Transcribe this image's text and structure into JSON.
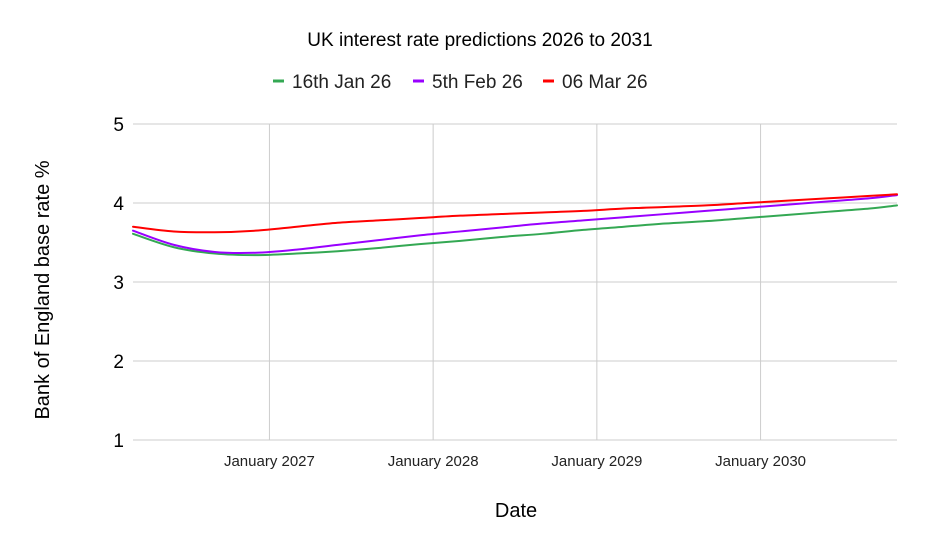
{
  "chart_data": {
    "type": "line",
    "title": "UK interest rate predictions 2026 to 2031",
    "xlabel": "Date",
    "ylabel": "Bank of England base rate %",
    "ylim": [
      1,
      5
    ],
    "yticks": [
      "1",
      "2",
      "3",
      "4",
      "5"
    ],
    "xlim": [
      "2026-03",
      "2030-11"
    ],
    "xticks": [
      {
        "value": "2027-01",
        "label": "January 2027"
      },
      {
        "value": "2028-01",
        "label": "January 2028"
      },
      {
        "value": "2029-01",
        "label": "January 2029"
      },
      {
        "value": "2030-01",
        "label": "January 2030"
      }
    ],
    "grid": true,
    "legend_position": "top",
    "x": [
      "2026-03",
      "2026-06",
      "2026-09",
      "2026-12",
      "2027-03",
      "2027-06",
      "2027-09",
      "2027-12",
      "2028-03",
      "2028-06",
      "2028-09",
      "2028-12",
      "2029-03",
      "2029-06",
      "2029-09",
      "2029-12",
      "2030-03",
      "2030-06",
      "2030-09",
      "2030-11"
    ],
    "series": [
      {
        "name": "16th Jan 26",
        "color": "#34a853",
        "values": [
          3.61,
          3.44,
          3.36,
          3.34,
          3.36,
          3.39,
          3.43,
          3.48,
          3.52,
          3.57,
          3.61,
          3.66,
          3.7,
          3.74,
          3.77,
          3.81,
          3.85,
          3.89,
          3.93,
          3.97
        ]
      },
      {
        "name": "5th Feb 26",
        "color": "#9900ff",
        "values": [
          3.65,
          3.47,
          3.38,
          3.37,
          3.41,
          3.47,
          3.53,
          3.59,
          3.64,
          3.69,
          3.74,
          3.78,
          3.82,
          3.86,
          3.9,
          3.94,
          3.98,
          4.02,
          4.06,
          4.1
        ]
      },
      {
        "name": "06 Mar 26",
        "color": "#ff0000",
        "values": [
          3.7,
          3.64,
          3.63,
          3.65,
          3.7,
          3.75,
          3.78,
          3.81,
          3.84,
          3.86,
          3.88,
          3.9,
          3.93,
          3.95,
          3.97,
          4.0,
          4.03,
          4.06,
          4.09,
          4.11
        ]
      }
    ]
  }
}
